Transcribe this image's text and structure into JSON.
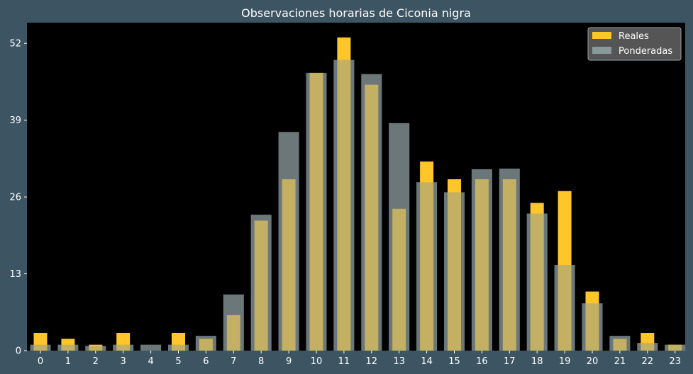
{
  "chart_data": {
    "type": "bar",
    "title": "Observaciones horarias de Ciconia nigra",
    "xlabel": "",
    "ylabel": "",
    "categories": [
      "0",
      "1",
      "2",
      "3",
      "4",
      "5",
      "6",
      "7",
      "8",
      "9",
      "10",
      "11",
      "12",
      "13",
      "14",
      "15",
      "16",
      "17",
      "18",
      "19",
      "20",
      "21",
      "22",
      "23"
    ],
    "yticks": [
      0,
      13,
      26,
      39,
      52
    ],
    "ylim": [
      0,
      55.5
    ],
    "grid": false,
    "legend_position": "top-right",
    "series": [
      {
        "name": "Reales",
        "color": "#ffc629",
        "values": [
          3,
          2,
          1,
          3,
          0,
          3,
          2,
          6,
          22,
          29,
          47,
          53,
          45,
          24,
          32,
          29,
          29,
          29,
          25,
          27,
          10,
          2,
          3,
          1
        ]
      },
      {
        "name": "Ponderadas",
        "color": "#8a9a9c",
        "values": [
          1,
          1,
          0.8,
          1,
          1,
          1,
          2.5,
          9.5,
          23,
          37,
          47,
          49.2,
          46.8,
          38.5,
          28.5,
          26.8,
          30.7,
          30.8,
          23.2,
          14.5,
          8,
          2.5,
          1.3,
          1
        ]
      }
    ]
  }
}
